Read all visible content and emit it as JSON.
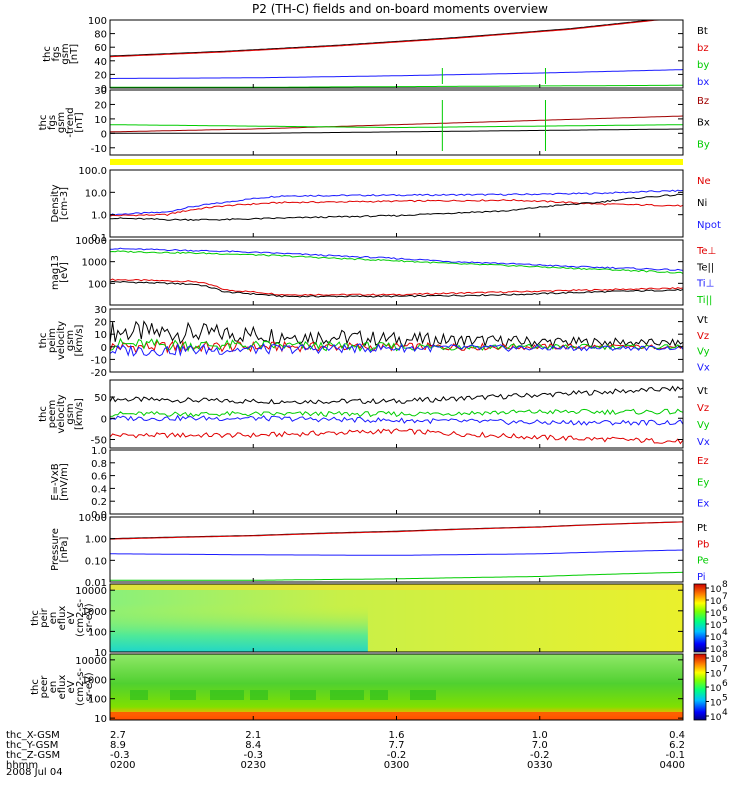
{
  "title": "P2 (TH-C) fields and on-board moments overview",
  "date_label": "2008 Jul 04",
  "colors": {
    "black": "#000000",
    "red": "#e00000",
    "green": "#00cc00",
    "blue": "#1a1aff",
    "yellow": "#ffff00",
    "darkred": "#a00000"
  },
  "chart_data": [
    {
      "id": "fgs",
      "type": "line",
      "ylabel": [
        "thc",
        "fgs",
        "gsm",
        "[nT]"
      ],
      "ylim": [
        0,
        100
      ],
      "yticks": [
        0,
        20,
        40,
        60,
        80,
        100
      ],
      "yscale": "linear",
      "series": [
        {
          "name": "Bt",
          "color": "#000000",
          "x": [
            0,
            0.2,
            0.4,
            0.6,
            0.8,
            0.9,
            1.0
          ],
          "values": [
            47,
            54,
            63,
            74,
            87,
            96,
            105
          ]
        },
        {
          "name": "bz",
          "color": "#e00000",
          "x": [
            0,
            0.2,
            0.4,
            0.6,
            0.8,
            0.9,
            1.0
          ],
          "values": [
            46,
            53,
            62,
            73,
            86,
            95,
            104
          ]
        },
        {
          "name": "by",
          "color": "#00cc00",
          "x": [
            0,
            0.25,
            0.5,
            0.75,
            1.0
          ],
          "values": [
            1,
            1,
            2,
            3,
            4
          ]
        },
        {
          "name": "bx",
          "color": "#1a1aff",
          "x": [
            0,
            0.25,
            0.5,
            0.75,
            1.0
          ],
          "values": [
            14,
            15,
            18,
            22,
            27
          ]
        }
      ],
      "legend": [
        {
          "label": "Bt",
          "color": "#000000"
        },
        {
          "label": "bz",
          "color": "#e00000"
        },
        {
          "label": "by",
          "color": "#00cc00"
        },
        {
          "label": "bx",
          "color": "#1a1aff"
        }
      ]
    },
    {
      "id": "fgs_dtrend",
      "type": "line",
      "ylabel": [
        "thc",
        "fgs",
        "gsm",
        "-trend",
        "[nT]"
      ],
      "ylim": [
        -15,
        30
      ],
      "yticks": [
        -10,
        0,
        10,
        20,
        30
      ],
      "yscale": "linear",
      "series": [
        {
          "name": "Bz",
          "color": "#a00000",
          "x": [
            0,
            0.25,
            0.5,
            0.75,
            1.0
          ],
          "values": [
            1,
            3,
            6,
            9,
            12
          ]
        },
        {
          "name": "Bx",
          "color": "#000000",
          "x": [
            0,
            0.25,
            0.5,
            0.75,
            1.0
          ],
          "values": [
            0,
            0,
            1,
            2,
            3
          ]
        },
        {
          "name": "By",
          "color": "#00cc00",
          "x": [
            0,
            0.25,
            0.5,
            0.75,
            1.0
          ],
          "values": [
            6,
            5,
            4,
            5,
            6
          ]
        }
      ],
      "legend": [
        {
          "label": "Bz",
          "color": "#a00000"
        },
        {
          "label": "Bx",
          "color": "#000000"
        },
        {
          "label": "By",
          "color": "#00cc00"
        }
      ]
    },
    {
      "id": "density",
      "type": "line",
      "ylabel": [
        "Density",
        "[cm-3]"
      ],
      "ylim": [
        0.1,
        100
      ],
      "yticks": [
        0.1,
        1.0,
        10.0,
        100.0
      ],
      "ytick_labels": [
        "0.1",
        "1.0",
        "10.0",
        "100.0"
      ],
      "yscale": "log",
      "series": [
        {
          "name": "Npot",
          "color": "#1a1aff",
          "x": [
            0,
            0.1,
            0.2,
            0.3,
            0.5,
            0.7,
            0.85,
            1.0
          ],
          "values": [
            1.0,
            1.3,
            3.5,
            7,
            7.5,
            8,
            9,
            12
          ]
        },
        {
          "name": "Ne",
          "color": "#e00000",
          "x": [
            0,
            0.1,
            0.2,
            0.3,
            0.5,
            0.7,
            0.85,
            1.0
          ],
          "values": [
            0.9,
            1.0,
            2.5,
            3.5,
            4,
            4.5,
            3,
            2.5
          ]
        },
        {
          "name": "Ni",
          "color": "#000000",
          "x": [
            0,
            0.1,
            0.2,
            0.3,
            0.5,
            0.7,
            0.85,
            1.0
          ],
          "values": [
            0.7,
            0.6,
            0.6,
            0.7,
            0.9,
            1.5,
            3.5,
            8
          ]
        }
      ],
      "legend": [
        {
          "label": "Ne",
          "color": "#e00000"
        },
        {
          "label": "Ni",
          "color": "#000000"
        },
        {
          "label": "Npot",
          "color": "#1a1aff"
        }
      ]
    },
    {
      "id": "temp",
      "type": "line",
      "ylabel": [
        "mag13",
        "[eV]"
      ],
      "ylim": [
        10,
        10000
      ],
      "yticks": [
        100,
        1000,
        10000
      ],
      "ytick_labels": [
        "100",
        "1000",
        "10000"
      ],
      "yscale": "log",
      "series": [
        {
          "name": "Te⊥",
          "color": "#e00000",
          "x": [
            0,
            0.15,
            0.2,
            0.3,
            0.5,
            0.7,
            0.85,
            1.0
          ],
          "values": [
            150,
            120,
            50,
            30,
            30,
            40,
            50,
            60
          ]
        },
        {
          "name": "Te||",
          "color": "#000000",
          "x": [
            0,
            0.15,
            0.2,
            0.3,
            0.5,
            0.7,
            0.85,
            1.0
          ],
          "values": [
            120,
            90,
            40,
            25,
            25,
            30,
            40,
            50
          ]
        },
        {
          "name": "Ti⊥",
          "color": "#1a1aff",
          "x": [
            0,
            0.2,
            0.4,
            0.6,
            0.8,
            1.0
          ],
          "values": [
            4000,
            3000,
            1800,
            1000,
            600,
            400
          ]
        },
        {
          "name": "Ti||",
          "color": "#00cc00",
          "x": [
            0,
            0.2,
            0.4,
            0.6,
            0.8,
            1.0
          ],
          "values": [
            3000,
            2300,
            1400,
            800,
            500,
            300
          ]
        }
      ],
      "legend": [
        {
          "label": "Te⊥",
          "color": "#e00000"
        },
        {
          "label": "Te||",
          "color": "#000000"
        },
        {
          "label": "Ti⊥",
          "color": "#1a1aff"
        },
        {
          "label": "Ti||",
          "color": "#00cc00"
        }
      ]
    },
    {
      "id": "peim_vel",
      "type": "line",
      "ylabel": [
        "thc",
        "peim",
        "velocity",
        "gsm",
        "[km/s]"
      ],
      "ylim": [
        -20,
        30
      ],
      "yticks": [
        -20,
        -10,
        0,
        10,
        20,
        30
      ],
      "yscale": "linear",
      "series": [
        {
          "name": "Vt",
          "color": "#000000",
          "x": [
            0,
            0.25,
            0.5,
            0.75,
            1.0
          ],
          "values": [
            12,
            10,
            6,
            4,
            3
          ]
        },
        {
          "name": "Vz",
          "color": "#e00000",
          "x": [
            0,
            0.25,
            0.5,
            0.75,
            1.0
          ],
          "values": [
            0,
            0,
            0,
            0,
            0
          ]
        },
        {
          "name": "Vy",
          "color": "#00cc00",
          "x": [
            0,
            0.25,
            0.5,
            0.75,
            1.0
          ],
          "values": [
            2,
            1,
            0,
            0,
            0
          ]
        },
        {
          "name": "Vx",
          "color": "#1a1aff",
          "x": [
            0,
            0.25,
            0.5,
            0.75,
            1.0
          ],
          "values": [
            -3,
            -2,
            -1,
            -1,
            -1
          ]
        }
      ],
      "legend": [
        {
          "label": "Vt",
          "color": "#000000"
        },
        {
          "label": "Vz",
          "color": "#e00000"
        },
        {
          "label": "Vy",
          "color": "#00cc00"
        },
        {
          "label": "Vx",
          "color": "#1a1aff"
        }
      ]
    },
    {
      "id": "peem_vel",
      "type": "line",
      "ylabel": [
        "thc",
        "peem",
        "velocity",
        "gsm",
        "[km/s]"
      ],
      "ylim": [
        -70,
        90
      ],
      "yticks": [
        -50,
        0,
        50
      ],
      "yscale": "linear",
      "series": [
        {
          "name": "Vt",
          "color": "#000000",
          "x": [
            0,
            0.25,
            0.5,
            0.75,
            1.0
          ],
          "values": [
            45,
            40,
            40,
            55,
            70
          ]
        },
        {
          "name": "Vz",
          "color": "#e00000",
          "x": [
            0,
            0.25,
            0.5,
            0.75,
            1.0
          ],
          "values": [
            -40,
            -40,
            -30,
            -45,
            -55
          ]
        },
        {
          "name": "Vy",
          "color": "#00cc00",
          "x": [
            0,
            0.25,
            0.5,
            0.75,
            1.0
          ],
          "values": [
            10,
            10,
            10,
            15,
            15
          ]
        },
        {
          "name": "Vx",
          "color": "#1a1aff",
          "x": [
            0,
            0.25,
            0.5,
            0.75,
            1.0
          ],
          "values": [
            0,
            0,
            -5,
            -10,
            -10
          ]
        }
      ],
      "legend": [
        {
          "label": "Vt",
          "color": "#000000"
        },
        {
          "label": "Vz",
          "color": "#e00000"
        },
        {
          "label": "Vy",
          "color": "#00cc00"
        },
        {
          "label": "Vx",
          "color": "#1a1aff"
        }
      ]
    },
    {
      "id": "efield",
      "type": "line",
      "ylabel": [
        "E=-VxB",
        "[mV/m]"
      ],
      "ylim": [
        0,
        1
      ],
      "yticks": [
        0.0,
        0.2,
        0.4,
        0.6,
        0.8,
        1.0
      ],
      "ytick_labels": [
        "0.0",
        "0.2",
        "0.4",
        "0.6",
        "0.8",
        "1.0"
      ],
      "yscale": "linear",
      "series": [],
      "legend": [
        {
          "label": "Ez",
          "color": "#e00000"
        },
        {
          "label": "Ey",
          "color": "#00cc00"
        },
        {
          "label": "Ex",
          "color": "#1a1aff"
        }
      ]
    },
    {
      "id": "pressure",
      "type": "line",
      "ylabel": [
        "Pressure",
        "[nPa]"
      ],
      "ylim": [
        0.01,
        10
      ],
      "yticks": [
        0.01,
        0.1,
        1.0,
        10.0
      ],
      "ytick_labels": [
        "0.01",
        "0.10",
        "1.00",
        "10.00"
      ],
      "yscale": "log",
      "series": [
        {
          "name": "Pt",
          "color": "#000000",
          "x": [
            0,
            0.25,
            0.5,
            0.75,
            1.0
          ],
          "values": [
            1.0,
            1.4,
            2.2,
            3.5,
            6.0
          ]
        },
        {
          "name": "Pb",
          "color": "#e00000",
          "x": [
            0,
            0.25,
            0.5,
            0.75,
            1.0
          ],
          "values": [
            0.95,
            1.35,
            2.1,
            3.4,
            5.9
          ]
        },
        {
          "name": "Pe",
          "color": "#00cc00",
          "x": [
            0,
            0.25,
            0.5,
            0.75,
            1.0
          ],
          "values": [
            0.012,
            0.012,
            0.014,
            0.018,
            0.028
          ]
        },
        {
          "name": "Pi",
          "color": "#1a1aff",
          "x": [
            0,
            0.25,
            0.5,
            0.75,
            1.0
          ],
          "values": [
            0.2,
            0.18,
            0.17,
            0.2,
            0.3
          ]
        }
      ],
      "legend": [
        {
          "label": "Pt",
          "color": "#000000"
        },
        {
          "label": "Pb",
          "color": "#e00000"
        },
        {
          "label": "Pe",
          "color": "#00cc00"
        },
        {
          "label": "Pi",
          "color": "#1a1aff"
        }
      ]
    },
    {
      "id": "peir_spec",
      "type": "heatmap",
      "ylabel": [
        "thc",
        "peir",
        "en",
        "eflux",
        "eV",
        "(cm2-s-",
        "sr-eV)"
      ],
      "ylim": [
        10,
        20000
      ],
      "yticks": [
        10,
        100,
        1000,
        10000
      ],
      "ytick_labels": [
        "10",
        "100",
        "1000",
        "10000"
      ],
      "yscale": "log",
      "colorbar": {
        "min_exp": 3,
        "max_exp": 8,
        "ticks": [
          "10",
          "10",
          "10",
          "10",
          "10",
          "10"
        ],
        "tick_exps": [
          "3",
          "4",
          "5",
          "6",
          "7",
          "8"
        ]
      }
    },
    {
      "id": "peer_spec",
      "type": "heatmap",
      "ylabel": [
        "thc",
        "peer",
        "en",
        "eflux",
        "eV",
        "(cm2-s-",
        "sr-eV)"
      ],
      "ylim": [
        8,
        20000
      ],
      "yticks": [
        10,
        100,
        1000,
        10000
      ],
      "ytick_labels": [
        "10",
        "100",
        "1000",
        "10000"
      ],
      "yscale": "log",
      "colorbar": {
        "min_exp": 4,
        "max_exp": 8,
        "ticks": [
          "10",
          "10",
          "10",
          "10",
          "10"
        ],
        "tick_exps": [
          "4",
          "5",
          "6",
          "7",
          "8"
        ]
      }
    }
  ],
  "time_axis": {
    "rows": [
      {
        "label": "thc_X-GSM",
        "values": [
          "2.7",
          "2.1",
          "1.6",
          "1.0",
          "0.4"
        ]
      },
      {
        "label": "thc_Y-GSM",
        "values": [
          "8.9",
          "8.4",
          "7.7",
          "7.0",
          "6.2"
        ]
      },
      {
        "label": "thc_Z-GSM",
        "values": [
          "-0.3",
          "-0.3",
          "-0.2",
          "-0.2",
          "-0.1"
        ]
      },
      {
        "label": "hhmm",
        "values": [
          "0200",
          "0230",
          "0300",
          "0330",
          "0400"
        ]
      }
    ]
  }
}
